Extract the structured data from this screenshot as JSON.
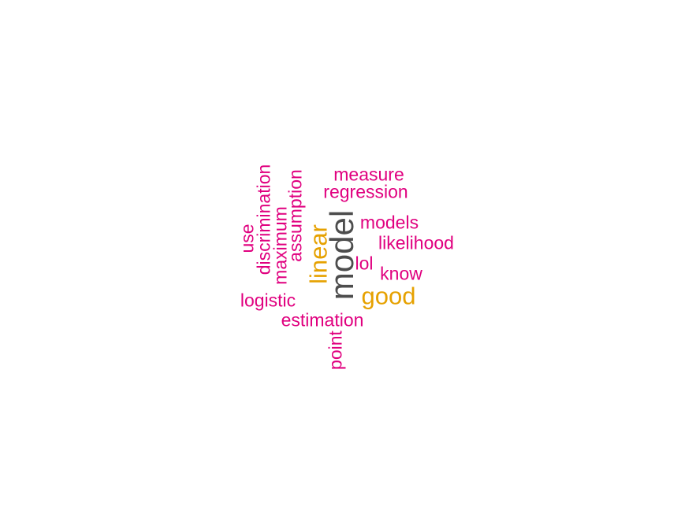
{
  "colors": {
    "primary": "#4d4d4d",
    "secondary": "#e6a100",
    "tertiary": "#e0007f"
  },
  "words": {
    "model": "model",
    "linear": "linear",
    "good": "good",
    "measure": "measure",
    "regression": "regression",
    "models": "models",
    "likelihood": "likelihood",
    "lol": "lol",
    "know": "know",
    "logistic": "logistic",
    "estimation": "estimation",
    "point": "point",
    "use": "use",
    "discrimination": "discrimination",
    "maximum": "maximum",
    "assumption": "assumption"
  }
}
